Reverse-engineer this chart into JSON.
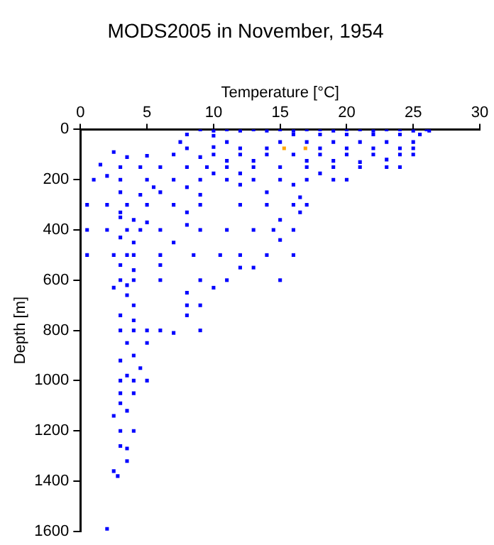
{
  "chart_data": {
    "type": "scatter",
    "title": "MODS2005 in November, 1954",
    "xlabel": "Temperature [°C]",
    "ylabel": "Depth [m]",
    "xlim": [
      0,
      30
    ],
    "xticks": [
      0,
      5,
      10,
      15,
      20,
      25,
      30
    ],
    "ylim": [
      1600,
      0
    ],
    "yticks": [
      0,
      200,
      400,
      600,
      800,
      1000,
      1200,
      1400,
      1600
    ],
    "grid": false,
    "legend": false,
    "marker": "square",
    "series": [
      {
        "color": "#0000ff",
        "x": [
          9,
          10,
          11,
          12,
          13,
          14,
          15,
          16,
          17,
          18,
          19,
          20,
          21,
          22,
          23,
          24,
          25,
          26,
          26.2,
          16,
          18,
          20,
          22,
          24,
          25.5,
          8,
          10,
          15,
          17,
          19,
          21,
          23,
          25,
          7.5,
          11,
          8,
          10,
          12,
          14,
          18,
          20,
          22,
          24,
          25,
          7,
          10,
          12,
          14,
          16,
          18,
          20,
          22,
          24,
          25,
          9,
          2.5,
          3.5,
          5,
          11,
          13,
          17,
          19,
          21,
          23,
          1.5,
          3,
          4.5,
          6,
          8,
          9.5,
          11,
          13,
          15,
          17,
          19,
          21,
          23,
          24,
          10,
          12,
          18,
          2,
          1,
          3,
          5,
          7,
          9,
          11,
          13,
          15,
          17,
          19,
          20,
          5.5,
          8,
          12,
          16,
          3,
          4.5,
          6,
          9,
          14,
          16.5,
          0.5,
          2,
          3.5,
          5,
          7,
          9,
          12,
          14,
          16,
          17,
          3,
          8,
          16.5,
          3,
          4,
          5,
          8,
          15,
          0.5,
          2,
          3.5,
          4.5,
          6,
          9,
          11,
          13,
          14.5,
          16,
          3,
          4,
          7,
          15,
          0.5,
          2.5,
          3.5,
          4,
          6,
          8.5,
          10.5,
          12,
          14,
          16,
          3,
          4,
          6,
          12,
          13,
          3,
          4,
          6,
          9,
          11,
          15,
          3.5,
          10,
          8,
          2.5,
          3.5,
          4,
          8,
          9,
          3,
          4,
          8,
          3,
          4,
          5,
          6,
          7,
          9,
          3.5,
          5,
          4,
          3,
          4.5,
          3.5,
          3,
          4,
          5,
          3,
          4,
          3,
          3.5,
          2.5,
          3,
          4,
          3,
          3.5,
          3.5,
          2.5,
          2.8,
          2
        ],
        "values": [
          0,
          5,
          0,
          5,
          0,
          5,
          0,
          5,
          0,
          0,
          5,
          0,
          0,
          5,
          0,
          0,
          5,
          0,
          5,
          20,
          20,
          20,
          20,
          20,
          20,
          20,
          25,
          50,
          50,
          50,
          50,
          50,
          50,
          50,
          50,
          75,
          70,
          75,
          75,
          75,
          75,
          75,
          75,
          75,
          100,
          100,
          100,
          100,
          100,
          100,
          100,
          100,
          100,
          100,
          110,
          90,
          110,
          105,
          125,
          125,
          125,
          125,
          130,
          120,
          140,
          150,
          150,
          150,
          150,
          150,
          150,
          150,
          150,
          150,
          150,
          150,
          150,
          150,
          175,
          175,
          175,
          185,
          200,
          200,
          200,
          200,
          200,
          200,
          200,
          200,
          200,
          200,
          200,
          230,
          230,
          220,
          220,
          250,
          260,
          250,
          260,
          250,
          270,
          300,
          300,
          300,
          300,
          300,
          300,
          300,
          300,
          300,
          300,
          330,
          330,
          330,
          350,
          360,
          370,
          380,
          360,
          400,
          400,
          400,
          400,
          400,
          400,
          400,
          400,
          400,
          400,
          430,
          450,
          450,
          440,
          500,
          500,
          500,
          500,
          500,
          500,
          500,
          500,
          500,
          500,
          540,
          560,
          540,
          550,
          550,
          600,
          600,
          600,
          600,
          600,
          600,
          620,
          630,
          650,
          630,
          660,
          700,
          700,
          700,
          740,
          760,
          740,
          800,
          800,
          800,
          800,
          810,
          800,
          850,
          850,
          900,
          920,
          950,
          980,
          1000,
          1000,
          1000,
          1050,
          1050,
          1090,
          1120,
          1140,
          1200,
          1200,
          1260,
          1270,
          1320,
          1360,
          1380,
          1590
        ]
      },
      {
        "color": "#ffa500",
        "x": [
          15.3,
          16.9
        ],
        "values": [
          75,
          75
        ]
      }
    ]
  }
}
